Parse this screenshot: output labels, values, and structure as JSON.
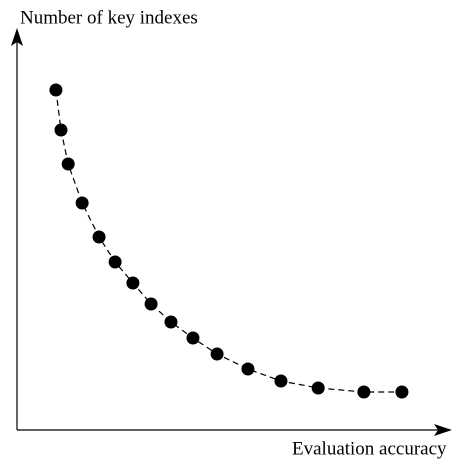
{
  "chart_data": {
    "type": "scatter",
    "y_label": "Number of key indexes",
    "x_label": "Evaluation accuracy",
    "x": [
      9.2,
      10.4,
      12.1,
      15.4,
      19.4,
      23.2,
      27.4,
      31.7,
      36.4,
      41.6,
      47.3,
      54.6,
      62.4,
      71.2,
      82.0,
      91.0
    ],
    "values": [
      85,
      75,
      66.5,
      56.75,
      48.25,
      42,
      36.75,
      31.5,
      27,
      23,
      19,
      15.25,
      12.25,
      10.5,
      9.5,
      9.5
    ],
    "color": "#000000",
    "line": "dashed",
    "xlim": [
      0,
      100
    ],
    "ylim": [
      0,
      100
    ]
  }
}
